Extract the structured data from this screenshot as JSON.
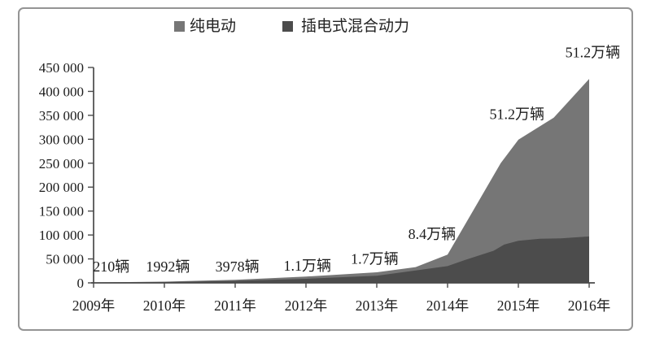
{
  "panel": {
    "border_color": "#949494",
    "background": "#ffffff"
  },
  "legend": {
    "items": [
      {
        "label": "纯电动",
        "color": "#767676"
      },
      {
        "label": "插电式混合动力",
        "color": "#4c4c4c"
      }
    ]
  },
  "chart_data": {
    "type": "area",
    "mode": "overlapping",
    "title": "",
    "xlabel": "",
    "ylabel": "",
    "categories": [
      "2009年",
      "2010年",
      "2011年",
      "2012年",
      "2013年",
      "2014年",
      "2015年",
      "2016年"
    ],
    "x_start_year": 2009,
    "ylim": [
      0,
      450000
    ],
    "grid": false,
    "legend_position": "top-center",
    "y_ticks": [
      {
        "value": 0,
        "label": "0"
      },
      {
        "value": 50000,
        "label": "50 000"
      },
      {
        "value": 100000,
        "label": "100 000"
      },
      {
        "value": 150000,
        "label": "150 000"
      },
      {
        "value": 200000,
        "label": "200 000"
      },
      {
        "value": 250000,
        "label": "250 000"
      },
      {
        "value": 300000,
        "label": "300 000"
      },
      {
        "value": 350000,
        "label": "350 000"
      },
      {
        "value": 400000,
        "label": "400 000"
      },
      {
        "value": 450000,
        "label": "450 000"
      }
    ],
    "series": [
      {
        "name": "纯电动",
        "color": "#767676",
        "points": [
          [
            2009,
            800
          ],
          [
            2010,
            2500
          ],
          [
            2011,
            6500
          ],
          [
            2012,
            13000
          ],
          [
            2013,
            22000
          ],
          [
            2013.55,
            33000
          ],
          [
            2014,
            59000
          ],
          [
            2014.75,
            250000
          ],
          [
            2015,
            299000
          ],
          [
            2015.5,
            345000
          ],
          [
            2016,
            426000
          ]
        ]
      },
      {
        "name": "插电式混合动力",
        "color": "#4c4c4c",
        "points": [
          [
            2009,
            400
          ],
          [
            2010,
            1600
          ],
          [
            2011,
            4000
          ],
          [
            2012,
            8500
          ],
          [
            2013,
            15000
          ],
          [
            2014,
            35000
          ],
          [
            2014.25,
            48000
          ],
          [
            2014.5,
            60000
          ],
          [
            2014.65,
            67000
          ],
          [
            2014.8,
            80000
          ],
          [
            2015,
            88000
          ],
          [
            2015.3,
            92000
          ],
          [
            2015.6,
            93000
          ],
          [
            2016,
            97000
          ]
        ]
      }
    ],
    "annotations": [
      {
        "text": "210辆",
        "year": 2009.25,
        "value": 34000
      },
      {
        "text": "1992辆",
        "year": 2010.05,
        "value": 34000
      },
      {
        "text": "3978辆",
        "year": 2011.03,
        "value": 34000
      },
      {
        "text": "1.1万辆",
        "year": 2012.02,
        "value": 36000
      },
      {
        "text": "1.7万辆",
        "year": 2012.97,
        "value": 50000
      },
      {
        "text": "8.4万辆",
        "year": 2013.78,
        "value": 102000
      },
      {
        "text": "51.2万辆",
        "year": 2014.98,
        "value": 352000
      },
      {
        "text": "51.2万辆",
        "year": 2016.05,
        "value": 481000
      }
    ]
  }
}
